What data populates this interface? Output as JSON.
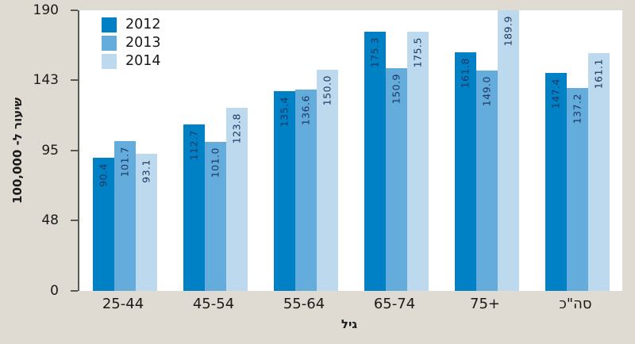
{
  "colors": {
    "background": "#DFDBD3",
    "plot_background": "#FFFFFF",
    "axis": "#595959",
    "text": "#1A1A1A",
    "value_label": "#1F3864",
    "series_2012": "#0081C6",
    "series_2013": "#64ACDC",
    "series_2014": "#BCD9EE"
  },
  "chart_data": {
    "type": "bar",
    "title": "",
    "categories": [
      "25-44",
      "45-54",
      "55-64",
      "65-74",
      "75+",
      "סה\"כ"
    ],
    "series": [
      {
        "name": "2012",
        "color": "#0081C6",
        "values": [
          90.4,
          112.7,
          135.4,
          175.3,
          161.8,
          147.4
        ]
      },
      {
        "name": "2013",
        "color": "#64ACDC",
        "values": [
          101.7,
          101.0,
          136.6,
          150.9,
          149.0,
          137.2
        ]
      },
      {
        "name": "2014",
        "color": "#BCD9EE",
        "values": [
          93.1,
          123.8,
          150.0,
          175.5,
          189.9,
          161.1
        ]
      }
    ],
    "value_labels": [
      [
        "90.4",
        "112.7",
        "135.4",
        "175.3",
        "161.8",
        "147.4"
      ],
      [
        "101.7",
        "101.0",
        "136.6",
        "150.9",
        "149.0",
        "137.2"
      ],
      [
        "93.1",
        "123.8",
        "150.0",
        "175.5",
        "189.9",
        "161.1"
      ]
    ],
    "xlabel": "גיל",
    "ylabel": "שיעור ל- 100,000",
    "ylim": [
      0,
      190
    ],
    "yticks": [
      "0",
      "48",
      "95",
      "143",
      "190"
    ],
    "legend_position": "top-left",
    "grid": false
  }
}
